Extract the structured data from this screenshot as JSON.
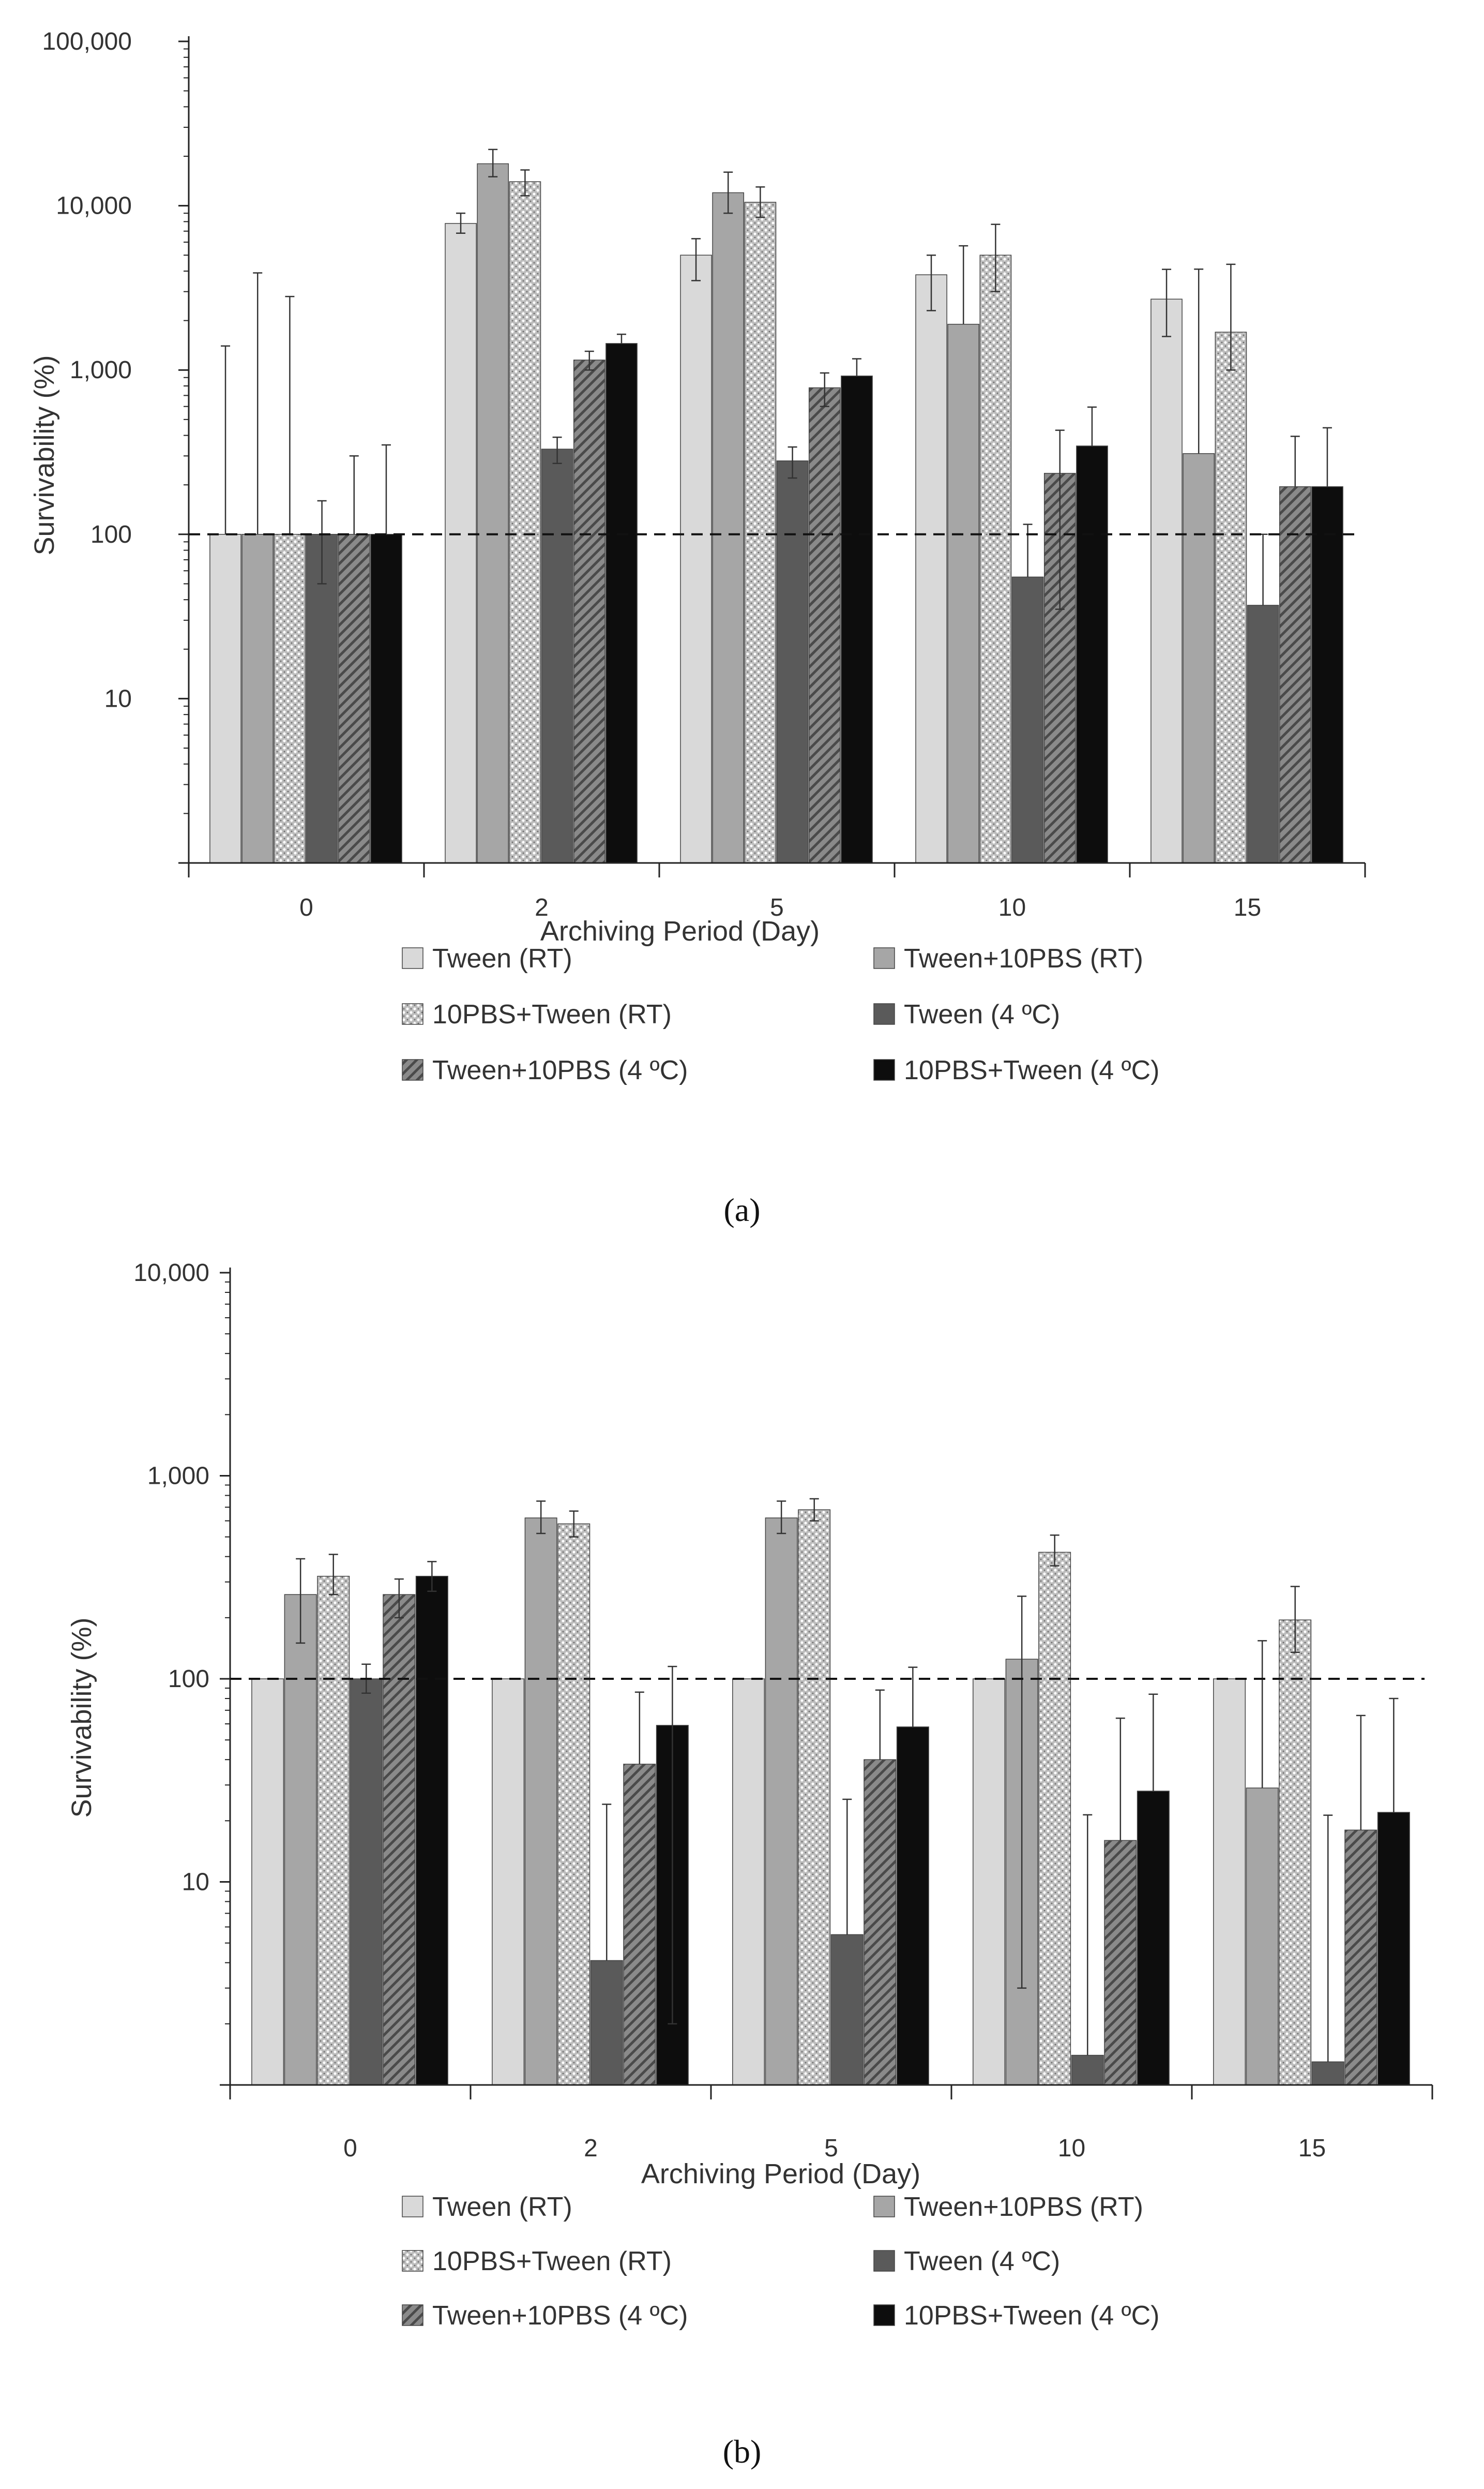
{
  "chart_data": [
    {
      "type": "bar",
      "panel": "a",
      "caption": "(a)",
      "yscale": "log",
      "ylim": [
        1,
        100000
      ],
      "yticks": [
        "100,000",
        "10,000",
        "1,000",
        "100",
        "10"
      ],
      "ytick_values": [
        100000,
        10000,
        1000,
        100,
        10
      ],
      "xlabel": "Archiving Period (Day)",
      "ylabel": "Survivability (%)",
      "categories": [
        "0",
        "2",
        "5",
        "10",
        "15"
      ],
      "reference_line": 100,
      "series": [
        {
          "name": "Tween (RT)",
          "values": [
            100,
            7800,
            5000,
            3800,
            2700
          ],
          "err_low": [
            0,
            1000,
            1500,
            1500,
            1100
          ],
          "err_high": [
            1300,
            1200,
            1300,
            1200,
            1400
          ]
        },
        {
          "name": "Tween+10PBS (RT)",
          "values": [
            100,
            18000,
            12000,
            1900,
            310
          ],
          "err_low": [
            0,
            3000,
            3000,
            0,
            0
          ],
          "err_high": [
            3800,
            4000,
            4000,
            3800,
            3800
          ]
        },
        {
          "name": "10PBS+Tween (RT)",
          "values": [
            100,
            14000,
            10500,
            5000,
            1700
          ],
          "err_low": [
            0,
            2500,
            2000,
            2000,
            700
          ],
          "err_high": [
            2700,
            2500,
            2500,
            2700,
            2700
          ]
        },
        {
          "name": "Tween (4 ºC)",
          "values": [
            100,
            330,
            280,
            55,
            37
          ],
          "err_low": [
            50,
            60,
            60,
            0,
            0
          ],
          "err_high": [
            60,
            60,
            60,
            60,
            63
          ]
        },
        {
          "name": "Tween+10PBS (4 ºC)",
          "values": [
            100,
            1150,
            780,
            235,
            195
          ],
          "err_low": [
            0,
            150,
            180,
            200,
            0
          ],
          "err_high": [
            200,
            150,
            180,
            195,
            200
          ]
        },
        {
          "name": "10PBS+Tween (4 ºC)",
          "values": [
            100,
            1450,
            920,
            345,
            195
          ],
          "err_low": [
            0,
            0,
            0,
            0,
            0
          ],
          "err_high": [
            250,
            200,
            250,
            250,
            250
          ]
        }
      ]
    },
    {
      "type": "bar",
      "panel": "b",
      "caption": "(b)",
      "yscale": "log",
      "ylim": [
        1,
        10000
      ],
      "yticks": [
        "10,000",
        "1,000",
        "100",
        "10"
      ],
      "ytick_values": [
        10000,
        1000,
        100,
        10
      ],
      "xlabel": "Archiving Period (Day)",
      "ylabel": "Survivability (%)",
      "categories": [
        "0",
        "2",
        "5",
        "10",
        "15"
      ],
      "reference_line": 100,
      "series": [
        {
          "name": "Tween (RT)",
          "values": [
            100,
            100,
            100,
            100,
            100
          ],
          "err_low": [
            0,
            0,
            0,
            0,
            0
          ],
          "err_high": [
            0,
            0,
            0,
            0,
            0
          ]
        },
        {
          "name": "Tween+10PBS (RT)",
          "values": [
            260,
            620,
            620,
            125,
            29
          ],
          "err_low": [
            110,
            100,
            100,
            122,
            0
          ],
          "err_high": [
            130,
            130,
            130,
            130,
            125
          ]
        },
        {
          "name": "10PBS+Tween (RT)",
          "values": [
            320,
            580,
            680,
            420,
            195
          ],
          "err_low": [
            60,
            80,
            80,
            60,
            60
          ],
          "err_high": [
            90,
            90,
            90,
            90,
            90
          ]
        },
        {
          "name": "Tween (4 ºC)",
          "values": [
            100,
            4.1,
            5.5,
            1.4,
            1.3
          ],
          "err_low": [
            15,
            0,
            0,
            0,
            0
          ],
          "err_high": [
            18,
            20,
            20,
            20,
            20
          ]
        },
        {
          "name": "Tween+10PBS (4 ºC)",
          "values": [
            260,
            38,
            40,
            16,
            18
          ],
          "err_low": [
            60,
            0,
            0,
            0,
            0
          ],
          "err_high": [
            50,
            48,
            48,
            48,
            48
          ]
        },
        {
          "name": "10PBS+Tween (4 ºC)",
          "values": [
            320,
            59,
            58,
            28,
            22
          ],
          "err_low": [
            50,
            57,
            0,
            0,
            0
          ],
          "err_high": [
            58,
            56,
            56,
            56,
            58
          ]
        }
      ]
    }
  ],
  "style": {
    "series_colors": [
      "#d9d9d9",
      "#a6a6a6",
      "#c4c4c4",
      "#5a5a5a",
      "#8a8a8a",
      "#0d0d0d"
    ],
    "series_patterns": [
      "solid",
      "solid",
      "dots",
      "solid",
      "hatch",
      "solid"
    ],
    "axis_color": "#222222"
  }
}
